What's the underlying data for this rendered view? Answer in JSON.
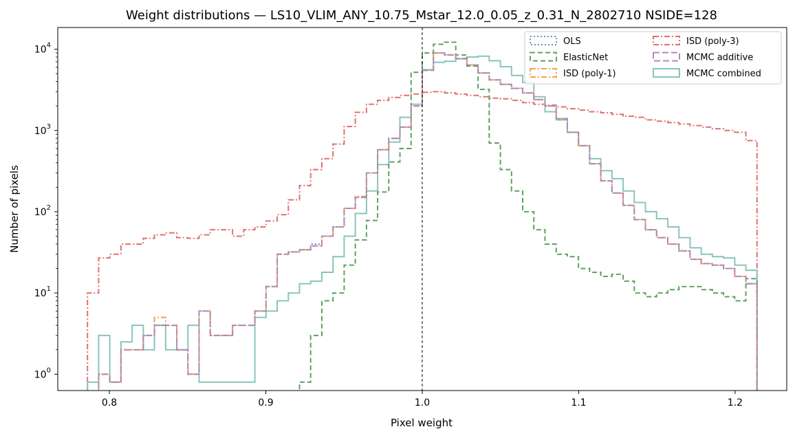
{
  "chart_data": {
    "type": "step-histogram",
    "title": "Weight distributions — LS10_VLIM_ANY_10.75_Mstar_12.0_0.05_z_0.31_N_2802710  NSIDE=128",
    "xlabel": "Pixel weight",
    "ylabel": "Number of pixels",
    "xlim": [
      0.767,
      1.233
    ],
    "ylim": [
      0.63,
      18500
    ],
    "yscale": "log",
    "grid": false,
    "legend_placement": "top-right",
    "legend_columns": 2,
    "xticks": [
      {
        "value": 0.8,
        "label": "0.8"
      },
      {
        "value": 0.9,
        "label": "0.9"
      },
      {
        "value": 1.0,
        "label": "1.0"
      },
      {
        "value": 1.1,
        "label": "1.1"
      },
      {
        "value": 1.2,
        "label": "1.2"
      }
    ],
    "yticks": [
      {
        "value": 1,
        "base": "10",
        "exp": "0"
      },
      {
        "value": 10,
        "base": "10",
        "exp": "1"
      },
      {
        "value": 100,
        "base": "10",
        "exp": "2"
      },
      {
        "value": 1000,
        "base": "10",
        "exp": "3"
      },
      {
        "value": 10000,
        "base": "10",
        "exp": "4"
      }
    ],
    "reference_line": {
      "x": 1.0,
      "style": "dashed",
      "color": "#000000"
    },
    "bin_range": [
      0.786,
      1.214
    ],
    "bin_count": 60,
    "series": [
      {
        "name": "ISD (poly-3)",
        "color": "#e07070",
        "dash": "8 3 2 3",
        "width": 2,
        "counts": [
          10,
          27,
          30,
          40,
          40,
          47,
          52,
          55,
          48,
          47,
          52,
          60,
          60,
          50,
          60,
          65,
          77,
          92,
          140,
          210,
          330,
          450,
          680,
          1120,
          1670,
          2100,
          2350,
          2550,
          2700,
          2800,
          2950,
          3000,
          2900,
          2800,
          2700,
          2600,
          2500,
          2450,
          2350,
          2200,
          2100,
          2050,
          1950,
          1850,
          1780,
          1700,
          1650,
          1580,
          1500,
          1450,
          1350,
          1300,
          1250,
          1200,
          1150,
          1100,
          1050,
          1000,
          950,
          750
        ]
      },
      {
        "name": "MCMC combined",
        "color": "#88c4bc",
        "dash": "",
        "width": 2,
        "counts": [
          0.8,
          3,
          0.8,
          2.5,
          4,
          2,
          4,
          2,
          2,
          4,
          0.8,
          0.8,
          0.8,
          0.8,
          0.8,
          5,
          6,
          8,
          10,
          13,
          14,
          18,
          28,
          50,
          95,
          180,
          380,
          720,
          1450,
          2100,
          5600,
          6900,
          7100,
          7600,
          8000,
          8200,
          7200,
          6100,
          4750,
          3900,
          2600,
          1700,
          1350,
          950,
          650,
          450,
          320,
          255,
          180,
          130,
          100,
          82,
          65,
          48,
          36,
          30,
          28,
          27,
          22,
          19
        ]
      },
      {
        "name": "ElasticNet",
        "color": "#5ba35b",
        "dash": "7 4",
        "width": 2,
        "counts": [
          0,
          0,
          0,
          0,
          0,
          0,
          0,
          0,
          0,
          0,
          0,
          0,
          0,
          0,
          0,
          0,
          0,
          0,
          0,
          0.8,
          3,
          8,
          10,
          22,
          45,
          78,
          175,
          410,
          600,
          5200,
          9000,
          11500,
          12200,
          8500,
          6200,
          3200,
          700,
          330,
          180,
          100,
          60,
          40,
          30,
          28,
          20,
          18,
          16,
          17,
          14,
          10,
          9,
          10,
          11,
          12,
          12,
          11,
          10,
          9,
          8,
          15
        ]
      },
      {
        "name": "OLS",
        "color": "#6a8fc0",
        "dash": "2 3",
        "width": 2,
        "counts": [
          0,
          1,
          0.8,
          2,
          2,
          3,
          4,
          4,
          2,
          1,
          6,
          3,
          3,
          4,
          4,
          6,
          12,
          30,
          32,
          34,
          40,
          50,
          65,
          110,
          150,
          300,
          580,
          800,
          1100,
          2000,
          5500,
          9000,
          8500,
          7700,
          6400,
          5100,
          4200,
          3700,
          3300,
          2900,
          2400,
          2000,
          1400,
          950,
          650,
          390,
          240,
          170,
          120,
          80,
          60,
          48,
          40,
          33,
          26,
          23,
          22,
          20,
          16,
          13
        ]
      },
      {
        "name": "ISD (poly-1)",
        "color": "#f0a050",
        "dash": "8 3 2 3",
        "width": 2,
        "counts": [
          0,
          1,
          0.8,
          2,
          2,
          3,
          5,
          4,
          2,
          1,
          6,
          3,
          3,
          4,
          4,
          6,
          12,
          30,
          32,
          34,
          38,
          50,
          65,
          110,
          155,
          300,
          580,
          800,
          1100,
          2000,
          5500,
          9000,
          8500,
          7700,
          6400,
          5100,
          4200,
          3700,
          3300,
          2900,
          2400,
          2000,
          1400,
          950,
          650,
          390,
          240,
          170,
          120,
          80,
          60,
          48,
          40,
          33,
          26,
          23,
          22,
          20,
          16,
          13
        ]
      },
      {
        "name": "MCMC additive",
        "color": "#b08ab8",
        "dash": "9 4",
        "width": 2,
        "counts": [
          0,
          1,
          0.8,
          2,
          2,
          3,
          4,
          4,
          2,
          1,
          6,
          3,
          3,
          4,
          4,
          6,
          12,
          30,
          32,
          34,
          38,
          50,
          65,
          110,
          150,
          300,
          580,
          800,
          1100,
          2000,
          5500,
          9000,
          8500,
          7700,
          6400,
          5100,
          4200,
          3700,
          3300,
          2900,
          2400,
          2000,
          1400,
          950,
          650,
          390,
          240,
          170,
          120,
          80,
          60,
          48,
          40,
          33,
          26,
          23,
          22,
          20,
          16,
          13
        ]
      }
    ]
  },
  "legend": [
    {
      "label": "OLS",
      "color": "#6a8fc0",
      "dash": "2 3"
    },
    {
      "label": "ISD (poly-3)",
      "color": "#e07070",
      "dash": "8 3 2 3"
    },
    {
      "label": "ElasticNet",
      "color": "#5ba35b",
      "dash": "7 4"
    },
    {
      "label": "MCMC additive",
      "color": "#b08ab8",
      "dash": "9 4"
    },
    {
      "label": "ISD (poly-1)",
      "color": "#f0a050",
      "dash": "8 3 2 3"
    },
    {
      "label": "MCMC combined",
      "color": "#88c4bc",
      "dash": ""
    }
  ]
}
